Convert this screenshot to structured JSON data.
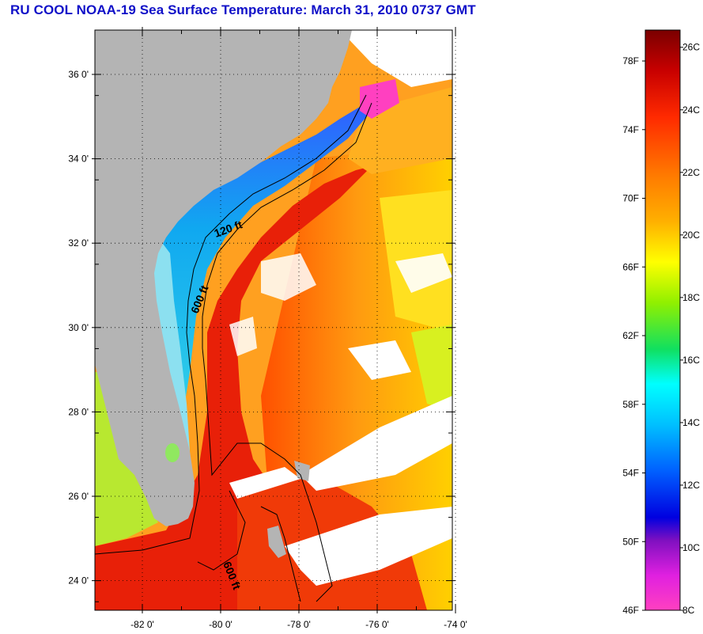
{
  "title": "RU COOL  NOAA-19  Sea Surface Temperature:  March 31, 2010 0737 GMT",
  "map": {
    "lat_ticks": [
      {
        "value": 36,
        "label": "36 0'"
      },
      {
        "value": 34,
        "label": "34 0'"
      },
      {
        "value": 32,
        "label": "32 0'"
      },
      {
        "value": 30,
        "label": "30 0'"
      },
      {
        "value": 28,
        "label": "28 0'"
      },
      {
        "value": 26,
        "label": "26 0'"
      },
      {
        "value": 24,
        "label": "24 0'"
      }
    ],
    "lon_ticks": [
      {
        "value": -82,
        "label": "-82 0'"
      },
      {
        "value": -80,
        "label": "-80 0'"
      },
      {
        "value": -78,
        "label": "-78 0'"
      },
      {
        "value": -76,
        "label": "-76 0'"
      },
      {
        "value": -74,
        "label": "-74 0'"
      }
    ],
    "contours": [
      {
        "label": "120 ft"
      },
      {
        "label": "600 ft"
      },
      {
        "label": "600 ft"
      }
    ],
    "colors": {
      "land": "#b4b4b4",
      "cloud": "#ffffff",
      "gulf_stream": "#e8200c",
      "warm_ocean": "#ff8c1c",
      "shelf_cool": "#1aa0f0",
      "nearshore": "#8ce0f0"
    }
  },
  "colorbar": {
    "fahrenheit": [
      "78F",
      "74F",
      "70F",
      "66F",
      "62F",
      "58F",
      "54F",
      "50F",
      "46F"
    ],
    "celsius": [
      "26C",
      "24C",
      "22C",
      "20C",
      "18C",
      "16C",
      "14C",
      "12C",
      "10C",
      "8C"
    ]
  }
}
